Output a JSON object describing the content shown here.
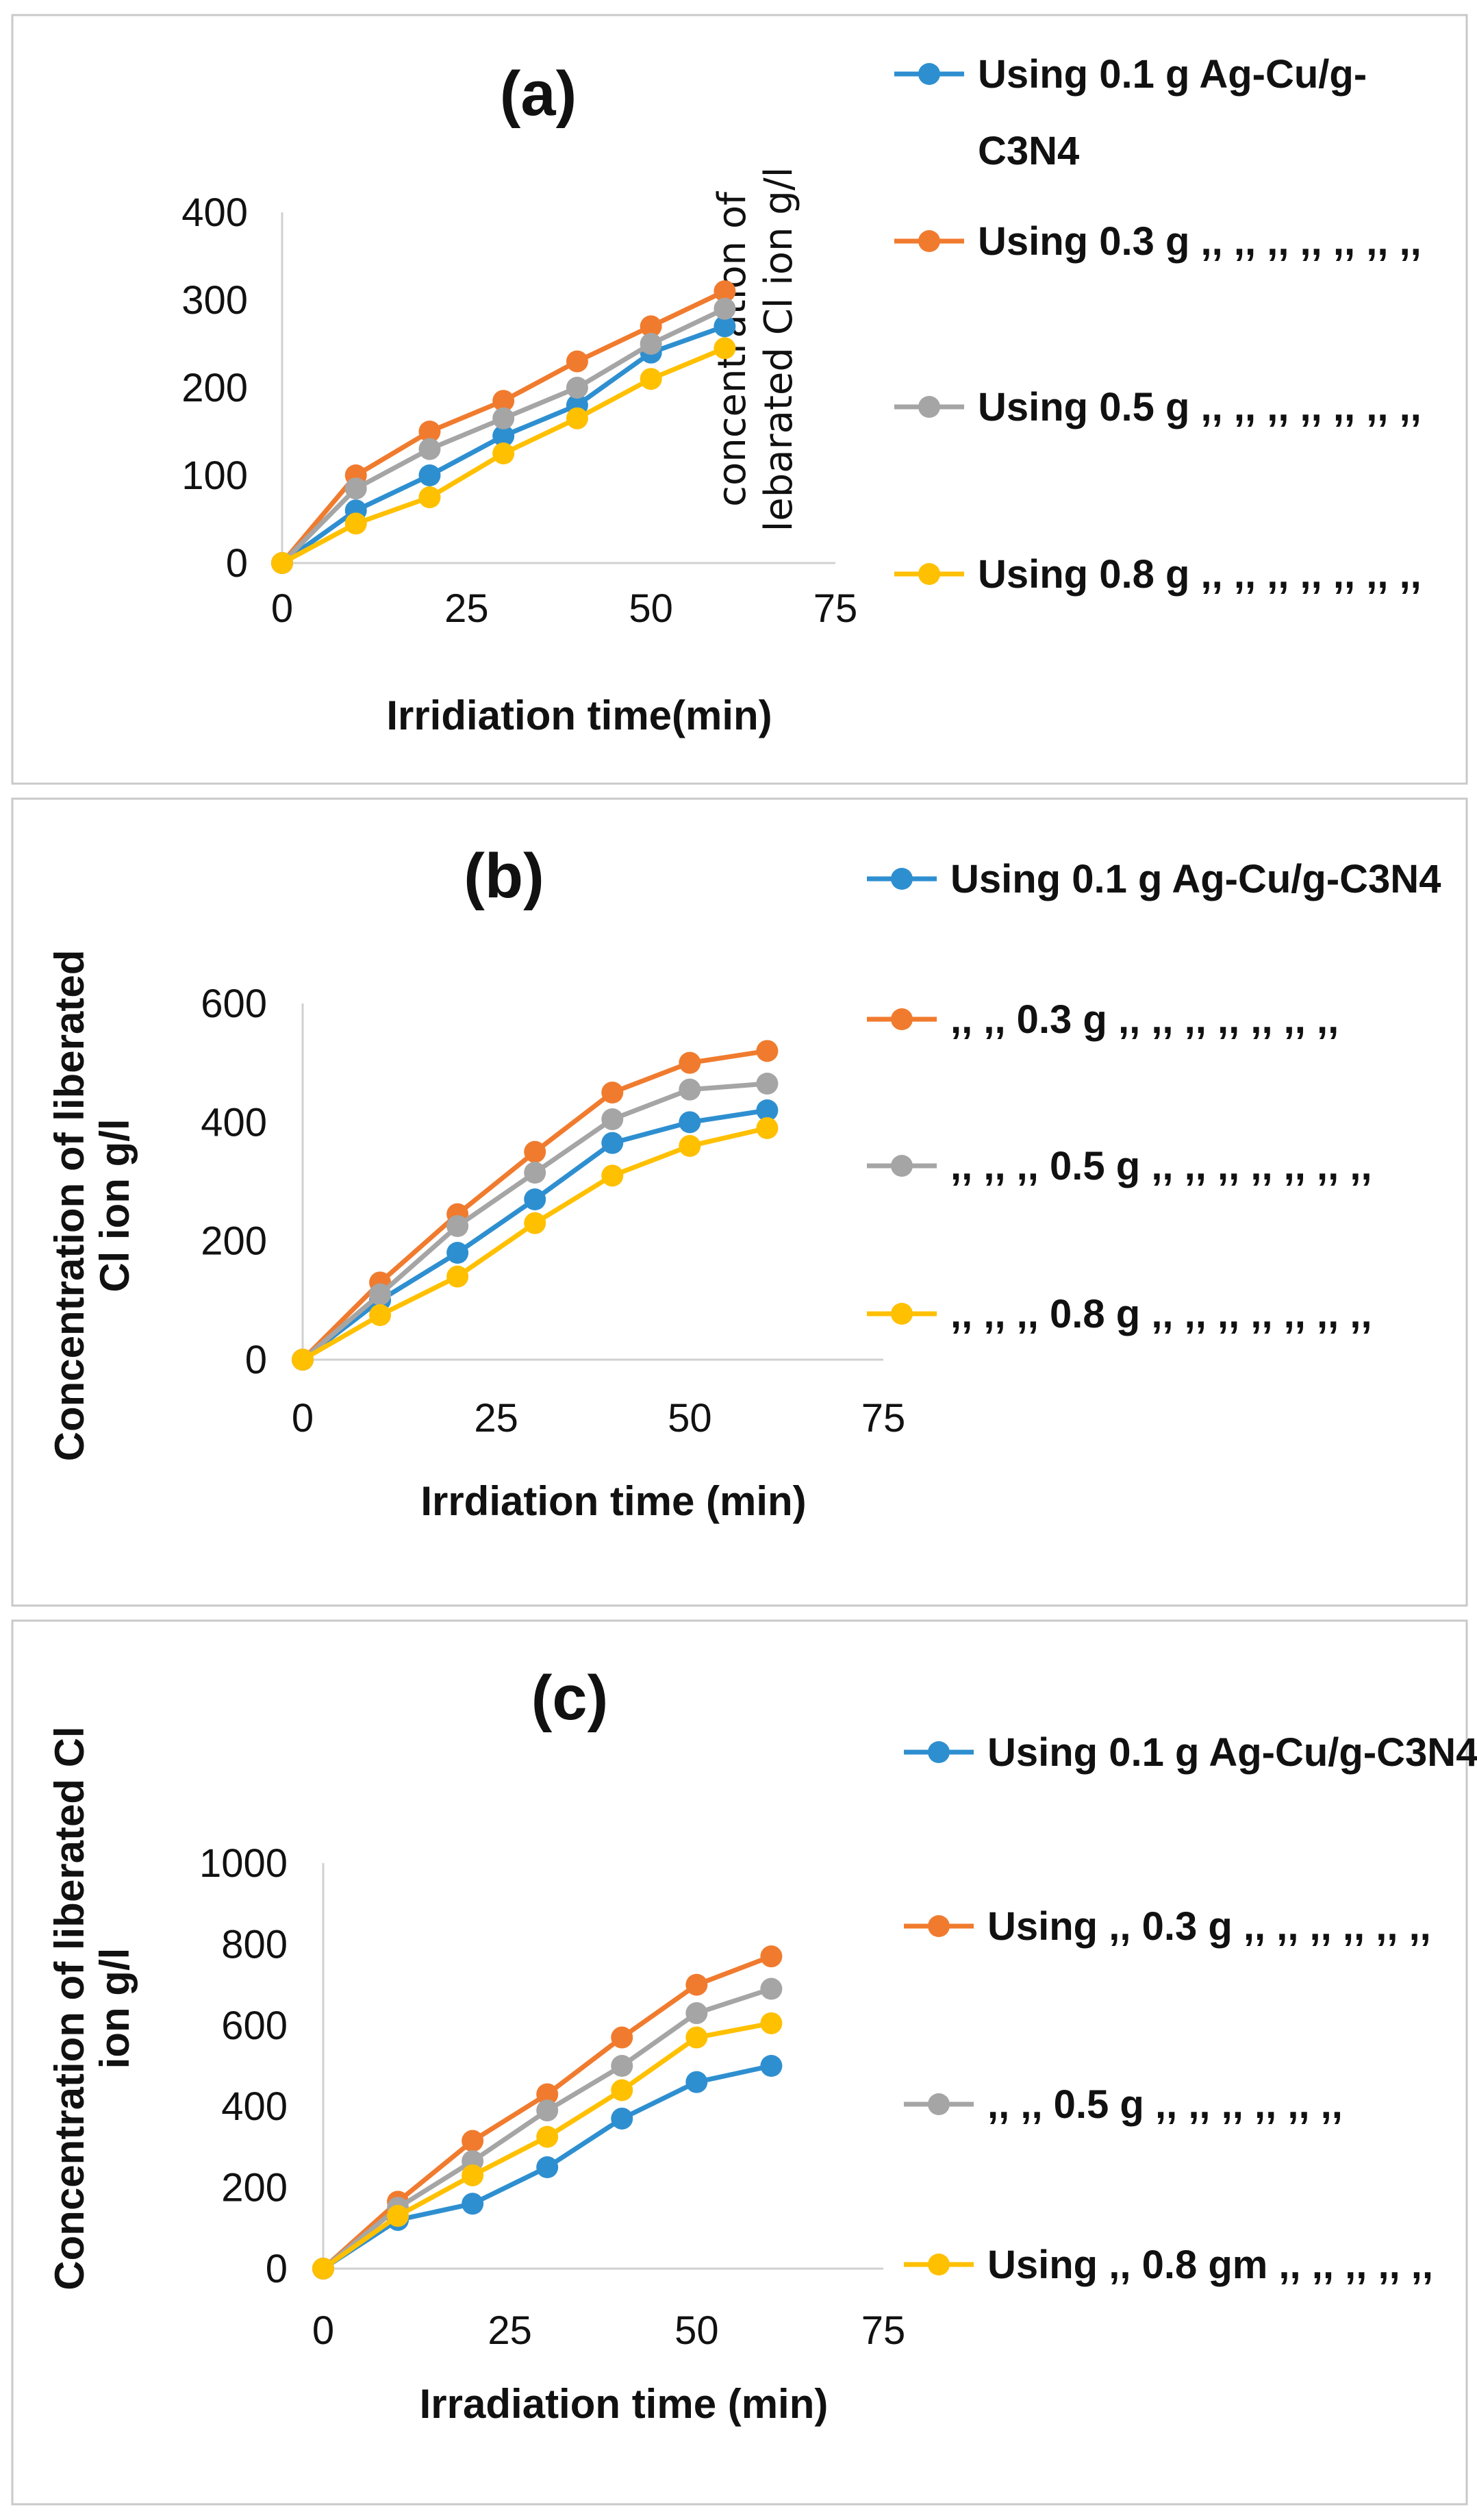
{
  "chart_data": [
    {
      "type": "line",
      "title": "(a)",
      "xlabel": "Irridiation time(min)",
      "ylabel": [
        "concentration of",
        "lebarated Cl ion g/l"
      ],
      "xlim": [
        0,
        75
      ],
      "ylim": [
        0,
        400
      ],
      "xticks": [
        0,
        25,
        50,
        75
      ],
      "yticks": [
        0,
        100,
        200,
        300,
        400
      ],
      "grid": false,
      "legend_position": "right",
      "x": [
        0,
        10,
        20,
        30,
        40,
        50,
        60
      ],
      "series": [
        {
          "name": [
            "Using 0.1 g Ag-Cu/g-",
            "C3N4"
          ],
          "color": "#2E8FD0",
          "values": [
            0,
            60,
            100,
            145,
            180,
            240,
            270
          ]
        },
        {
          "name": [
            "Using 0.3 g  ,, ,, ,, ,, ,, ,, ,,"
          ],
          "color": "#F07B2E",
          "values": [
            0,
            100,
            150,
            185,
            230,
            270,
            310
          ]
        },
        {
          "name": [
            "Using 0.5 g ,, ,, ,, ,, ,, ,, ,,"
          ],
          "color": "#A5A5A5",
          "values": [
            0,
            85,
            130,
            165,
            200,
            250,
            290
          ]
        },
        {
          "name": [
            "Using 0.8 g ,, ,, ,, ,, ,, ,, ,,"
          ],
          "color": "#FFC000",
          "values": [
            0,
            45,
            75,
            125,
            165,
            210,
            245
          ]
        }
      ]
    },
    {
      "type": "line",
      "title": "(b)",
      "xlabel": "Irrdiation time (min)",
      "ylabel": [
        "Concentration  of liberated",
        "Cl ion g/l"
      ],
      "xlim": [
        0,
        75
      ],
      "ylim": [
        0,
        600
      ],
      "xticks": [
        0,
        25,
        50,
        75
      ],
      "yticks": [
        0,
        200,
        400,
        600
      ],
      "grid": false,
      "legend_position": "right",
      "x": [
        0,
        10,
        20,
        30,
        40,
        50,
        60
      ],
      "series": [
        {
          "name": [
            "Using 0.1 g Ag-Cu/g-C3N4"
          ],
          "color": "#2E8FD0",
          "values": [
            0,
            100,
            180,
            270,
            365,
            400,
            420
          ]
        },
        {
          "name": [
            ",, ,, 0.3 g ,, ,, ,, ,, ,, ,, ,,"
          ],
          "color": "#F07B2E",
          "values": [
            0,
            130,
            245,
            350,
            450,
            500,
            520
          ]
        },
        {
          "name": [
            ",, ,, ,, 0.5 g ,, ,, ,, ,, ,, ,, ,,"
          ],
          "color": "#A5A5A5",
          "values": [
            0,
            110,
            225,
            315,
            405,
            455,
            465
          ]
        },
        {
          "name": [
            ",, ,, ,, 0.8 g ,, ,, ,, ,, ,, ,, ,,"
          ],
          "color": "#FFC000",
          "values": [
            0,
            75,
            140,
            230,
            310,
            360,
            390
          ]
        }
      ]
    },
    {
      "type": "line",
      "title": "(c)",
      "xlabel": "Irradiation time (min)",
      "ylabel": [
        "Concentration of liberated Cl",
        "ion g/l"
      ],
      "xlim": [
        0,
        75
      ],
      "ylim": [
        0,
        1000
      ],
      "xticks": [
        0,
        25,
        50,
        75
      ],
      "yticks": [
        0,
        200,
        400,
        600,
        800,
        1000
      ],
      "grid": false,
      "legend_position": "right",
      "x": [
        0,
        10,
        20,
        30,
        40,
        50,
        60
      ],
      "series": [
        {
          "name": [
            "Using 0.1 g Ag-Cu/g-C3N4"
          ],
          "color": "#2E8FD0",
          "values": [
            0,
            120,
            160,
            250,
            370,
            460,
            500
          ]
        },
        {
          "name": [
            "Using ,, 0.3 g ,, ,, ,, ,, ,, ,,"
          ],
          "color": "#F07B2E",
          "values": [
            0,
            165,
            315,
            430,
            570,
            700,
            770
          ]
        },
        {
          "name": [
            ",, ,, 0.5 g ,, ,, ,, ,, ,, ,,"
          ],
          "color": "#A5A5A5",
          "values": [
            0,
            150,
            265,
            390,
            500,
            630,
            690
          ]
        },
        {
          "name": [
            "Using ,, 0.8 gm ,, ,, ,, ,, ,,"
          ],
          "color": "#FFC000",
          "values": [
            0,
            130,
            230,
            325,
            440,
            570,
            605
          ]
        }
      ]
    }
  ]
}
